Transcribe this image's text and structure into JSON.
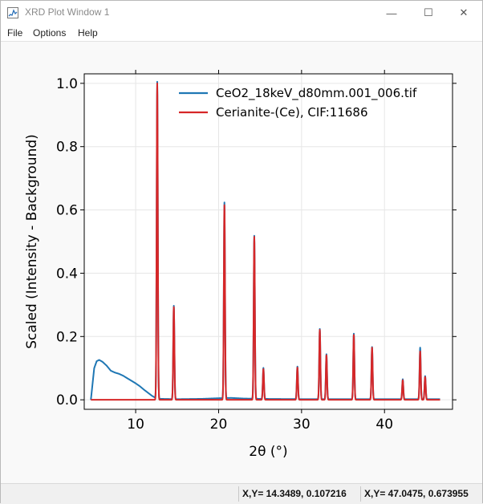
{
  "window": {
    "title": "XRD Plot Window 1",
    "minimize": "—",
    "maximize": "☐",
    "close": "✕"
  },
  "menu": [
    "File",
    "Options",
    "Help"
  ],
  "status": {
    "cursor_1": "X,Y= 14.3489, 0.107216",
    "cursor_2": "X,Y= 47.0475, 0.673955"
  },
  "colors": {
    "measured": "#1f77b4",
    "reference": "#d62728",
    "grid": "#e6e6e6"
  },
  "chart_data": {
    "type": "line",
    "title": "",
    "xlabel": "2θ (°)",
    "ylabel": "Scaled (Intensity - Background)",
    "xlim": [
      3.8,
      48.2
    ],
    "ylim": [
      -0.03,
      1.03
    ],
    "xticks": [
      10,
      20,
      30,
      40
    ],
    "yticks": [
      0.0,
      0.2,
      0.4,
      0.6,
      0.8,
      1.0
    ],
    "xtick_labels": [
      "10",
      "20",
      "30",
      "40"
    ],
    "ytick_labels": [
      "0.0",
      "0.2",
      "0.4",
      "0.6",
      "0.8",
      "1.0"
    ],
    "grid": true,
    "legend": "top-right",
    "series": [
      {
        "name": "CeO2_18keV_d80mm.001_006.tif",
        "color": "#1f77b4",
        "background": [
          [
            4.6,
            0.0
          ],
          [
            4.8,
            0.05
          ],
          [
            5.0,
            0.1
          ],
          [
            5.3,
            0.122
          ],
          [
            5.6,
            0.126
          ],
          [
            6.0,
            0.12
          ],
          [
            6.5,
            0.108
          ],
          [
            7.0,
            0.092
          ],
          [
            7.5,
            0.086
          ],
          [
            8.0,
            0.082
          ],
          [
            8.5,
            0.076
          ],
          [
            9.0,
            0.068
          ],
          [
            9.5,
            0.06
          ],
          [
            10.0,
            0.052
          ],
          [
            10.5,
            0.043
          ],
          [
            11.0,
            0.032
          ],
          [
            11.5,
            0.022
          ],
          [
            12.0,
            0.012
          ],
          [
            12.4,
            0.006
          ],
          [
            13.0,
            0.003
          ],
          [
            15.0,
            0.002
          ],
          [
            18.0,
            0.003
          ],
          [
            20.0,
            0.005
          ],
          [
            21.5,
            0.006
          ],
          [
            23.0,
            0.004
          ],
          [
            25.0,
            0.003
          ],
          [
            30.0,
            0.002
          ],
          [
            40.0,
            0.002
          ],
          [
            46.7,
            0.002
          ]
        ],
        "peaks": [
          [
            12.6,
            1.0
          ],
          [
            14.6,
            0.295
          ],
          [
            20.7,
            0.618
          ],
          [
            24.3,
            0.515
          ],
          [
            25.4,
            0.098
          ],
          [
            29.5,
            0.103
          ],
          [
            32.2,
            0.222
          ],
          [
            33.0,
            0.142
          ],
          [
            36.3,
            0.207
          ],
          [
            38.5,
            0.165
          ],
          [
            42.2,
            0.063
          ],
          [
            44.3,
            0.163
          ],
          [
            44.9,
            0.073
          ]
        ]
      },
      {
        "name": "Cerianite-(Ce), CIF:11686",
        "color": "#d62728",
        "peaks": [
          [
            12.6,
            1.0
          ],
          [
            14.6,
            0.293
          ],
          [
            20.7,
            0.615
          ],
          [
            24.3,
            0.515
          ],
          [
            25.4,
            0.097
          ],
          [
            29.5,
            0.102
          ],
          [
            32.2,
            0.221
          ],
          [
            33.0,
            0.141
          ],
          [
            36.3,
            0.205
          ],
          [
            38.5,
            0.165
          ],
          [
            42.2,
            0.062
          ],
          [
            44.3,
            0.153
          ],
          [
            44.9,
            0.072
          ]
        ]
      }
    ]
  }
}
